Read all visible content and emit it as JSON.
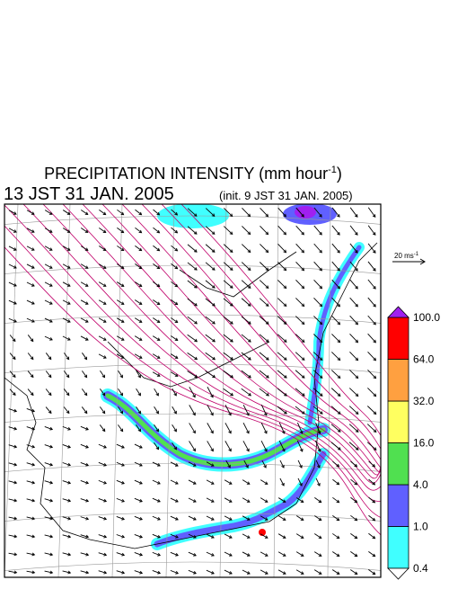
{
  "title": {
    "text": "PRECIPITATION INTENSITY (mm hour",
    "superscript": "-1",
    "suffix": ")"
  },
  "valid_time": "13 JST 31 JAN. 2005",
  "init_time": "(init. 9 JST 31 JAN. 2005)",
  "wind_scale": {
    "text": "20 ms",
    "superscript": "-1"
  },
  "colorbar": {
    "levels": [
      "0.4",
      "1.0",
      "4.0",
      "16.0",
      "32.0",
      "64.0",
      "100.0"
    ],
    "band_colors": [
      "#40ffff",
      "#6060ff",
      "#50e050",
      "#ffff60",
      "#ffa040",
      "#ff0000"
    ],
    "over_color": "#a020f0",
    "under_color": "#ffffff"
  }
}
